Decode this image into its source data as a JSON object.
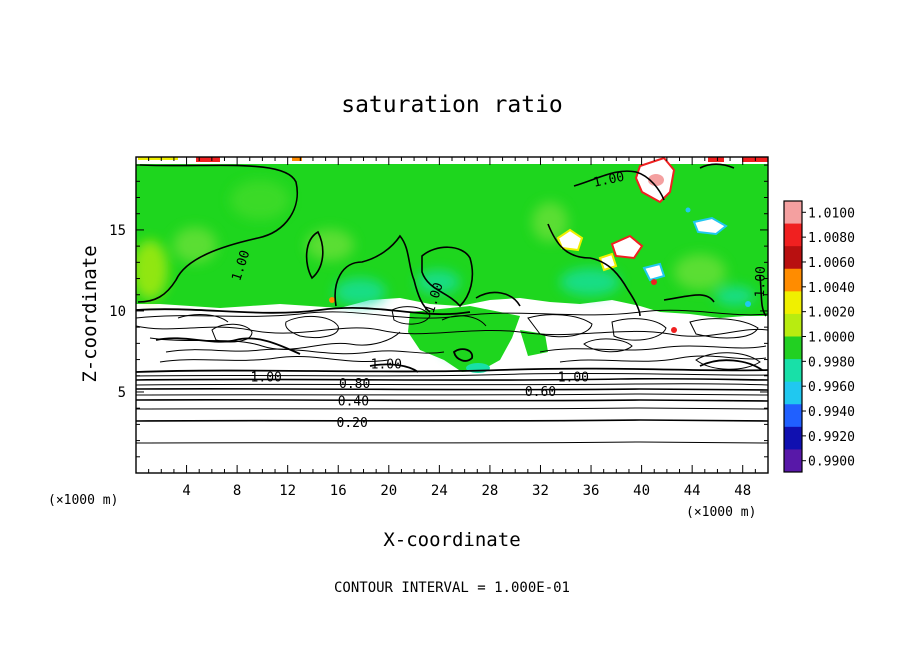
{
  "chart_data": {
    "type": "heatmap",
    "title": "saturation ratio",
    "xlabel": "X-coordinate",
    "ylabel": "Z-coordinate",
    "x_unit": "(×1000 m)",
    "z_unit": "(×1000 m)",
    "xlim": [
      0,
      50
    ],
    "ylim": [
      0,
      19.5
    ],
    "x_ticks": [
      4,
      8,
      12,
      16,
      20,
      24,
      28,
      32,
      36,
      40,
      44,
      48
    ],
    "y_ticks": [
      5,
      10,
      15
    ],
    "colorbar": {
      "levels": [
        "1.0100",
        "1.0080",
        "1.0060",
        "1.0040",
        "1.0020",
        "1.0000",
        "0.9980",
        "0.9960",
        "0.9940",
        "0.9920",
        "0.9900"
      ],
      "colors": [
        "#f4a0a0",
        "#f02020",
        "#b81010",
        "#ff8c00",
        "#f0f000",
        "#b8ec10",
        "#22d022",
        "#18e0a8",
        "#20c8f0",
        "#2060ff",
        "#1010b0",
        "#5818a8"
      ]
    },
    "contour_labels": [
      {
        "text": "1.00",
        "x": 8.3,
        "z": 12.8,
        "angle": -72
      },
      {
        "text": "1.00",
        "x": 23.6,
        "z": 10.8,
        "angle": -72
      },
      {
        "text": "1.00",
        "x": 37.4,
        "z": 18.1,
        "angle": -12
      },
      {
        "text": "1.00",
        "x": 49.4,
        "z": 11.8,
        "angle": -88
      },
      {
        "text": "1.00",
        "x": 19.8,
        "z": 6.7,
        "angle": 0
      },
      {
        "text": "1.00",
        "x": 10.3,
        "z": 5.9,
        "angle": 0
      },
      {
        "text": "1.00",
        "x": 34.6,
        "z": 5.9,
        "angle": 0
      },
      {
        "text": "0.80",
        "x": 17.3,
        "z": 5.5,
        "angle": 0
      },
      {
        "text": "0.60",
        "x": 32.0,
        "z": 5.0,
        "angle": 0
      },
      {
        "text": "0.40",
        "x": 17.2,
        "z": 4.4,
        "angle": 0
      },
      {
        "text": "0.20",
        "x": 17.1,
        "z": 3.1,
        "angle": 0
      }
    ],
    "footnote": "CONTOUR INTERVAL = 1.000E-01"
  }
}
